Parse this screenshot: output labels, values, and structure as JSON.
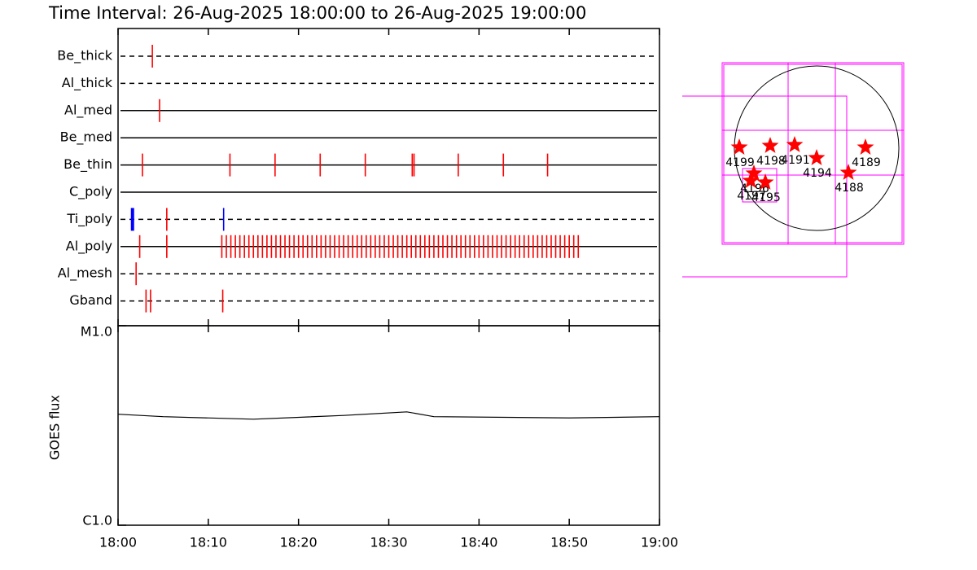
{
  "title": "Time Interval: 26-Aug-2025 18:00:00 to 26-Aug-2025 19:00:00",
  "chart_data": [
    {
      "type": "timeline",
      "xlim": [
        0,
        60
      ],
      "xticks": [
        {
          "value": 0,
          "label": "18:00"
        },
        {
          "value": 10,
          "label": "18:10"
        },
        {
          "value": 20,
          "label": "18:20"
        },
        {
          "value": 30,
          "label": "18:30"
        },
        {
          "value": 40,
          "label": "18:40"
        },
        {
          "value": 50,
          "label": "18:50"
        },
        {
          "value": 60,
          "label": "19:00"
        }
      ],
      "color": "#ff0000",
      "rows": [
        {
          "name": "Be_thick",
          "line": "dashed",
          "events": [
            3.8
          ]
        },
        {
          "name": "Al_thick",
          "line": "dashed",
          "events": []
        },
        {
          "name": "Al_med",
          "line": "solid",
          "events": [
            4.6
          ]
        },
        {
          "name": "Be_med",
          "line": "solid",
          "events": []
        },
        {
          "name": "Be_thin",
          "line": "solid",
          "events": [
            2.7,
            12.4,
            17.4,
            22.4,
            27.4,
            32.6,
            32.8,
            37.7,
            42.7,
            47.6
          ]
        },
        {
          "name": "C_poly",
          "line": "solid",
          "events": []
        },
        {
          "name": "Ti_poly",
          "line": "dashed",
          "events": [
            1.6,
            5.4,
            11.7
          ],
          "colors": [
            "#0000ff",
            "#ff0000",
            "#0000ff"
          ]
        },
        {
          "name": "Al_poly",
          "line": "solid",
          "events": [
            2.4,
            5.4,
            11.5,
            12,
            12.5,
            13,
            13.5,
            14,
            14.5,
            15,
            15.5,
            16,
            16.5,
            17,
            17.5,
            18,
            18.5,
            19,
            19.5,
            20,
            20.5,
            21,
            21.5,
            22,
            22.5,
            23,
            23.5,
            24,
            24.5,
            25,
            25.5,
            26,
            26.5,
            27,
            27.5,
            28,
            28.5,
            29,
            29.5,
            30,
            30.5,
            31,
            31.5,
            32,
            32.5,
            33,
            33.5,
            34,
            34.5,
            35,
            35.5,
            36,
            36.5,
            37,
            37.5,
            38,
            38.5,
            39,
            39.5,
            40,
            40.5,
            41,
            41.5,
            42,
            42.5,
            43,
            43.5,
            44,
            44.5,
            45,
            45.5,
            46,
            46.5,
            47,
            47.5,
            48,
            48.5,
            49,
            49.5,
            50,
            50.5,
            51
          ]
        },
        {
          "name": "Al_mesh",
          "line": "dashed",
          "events": [
            2.0
          ]
        },
        {
          "name": "Gband",
          "line": "dashed",
          "events": [
            3.1,
            3.6,
            11.6
          ]
        }
      ]
    },
    {
      "type": "line",
      "y_label": "GOES flux",
      "log_y": true,
      "ylim": [
        1e-06,
        1e-05
      ],
      "yticks": [
        {
          "value": 1e-06,
          "label": "C1.0"
        },
        {
          "value": 1e-05,
          "label": "M1.0"
        }
      ],
      "color": "#000000",
      "x": [
        0,
        5,
        15,
        25,
        32,
        35,
        50,
        60
      ],
      "values": [
        3.6e-06,
        3.5e-06,
        3.4e-06,
        3.55e-06,
        3.7e-06,
        3.5e-06,
        3.45e-06,
        3.5e-06
      ]
    },
    {
      "type": "map",
      "xlim": [
        -1100,
        1100
      ],
      "ylim": [
        -1100,
        1100
      ],
      "solar_radius": 950,
      "color": "#ff0000",
      "regions": [
        {
          "label": "4199",
          "x": -893,
          "y": 9
        },
        {
          "label": "4198",
          "x": -536,
          "y": 28
        },
        {
          "label": "4191",
          "x": -254,
          "y": 38
        },
        {
          "label": "4194",
          "x": 0,
          "y": -113
        },
        {
          "label": "4189",
          "x": 564,
          "y": 9
        },
        {
          "label": "4188",
          "x": 367,
          "y": -282
        },
        {
          "label": "4196",
          "x": -724,
          "y": -291
        },
        {
          "label": "4197",
          "x": -761,
          "y": -376
        },
        {
          "label": "4195",
          "x": -592,
          "y": -395
        }
      ]
    }
  ]
}
